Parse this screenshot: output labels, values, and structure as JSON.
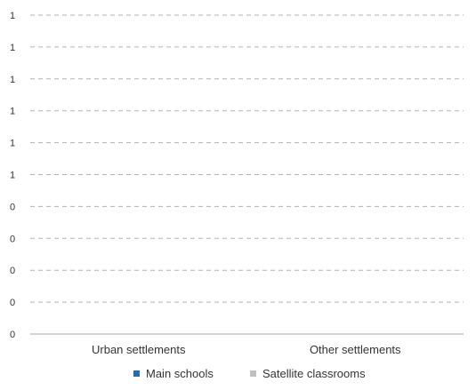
{
  "chart_data": {
    "type": "bar",
    "categories": [
      "Urban settlements",
      "Other settlements"
    ],
    "series": [
      {
        "name": "Main schools",
        "values": [
          0,
          0
        ],
        "color": "#1f6fb5"
      },
      {
        "name": "Satellite classrooms",
        "values": [
          0,
          0
        ],
        "color": "#c0c0c0"
      }
    ],
    "y_tick_labels": [
      "0",
      "0",
      "0",
      "0",
      "0",
      "1",
      "1",
      "1",
      "1",
      "1",
      "1"
    ],
    "ylim": [
      0,
      1
    ],
    "grid": true,
    "legend_position": "bottom",
    "gridline_color": "#b3b3b3",
    "axis_color": "#a6a6a6",
    "text_color": "#333333"
  }
}
